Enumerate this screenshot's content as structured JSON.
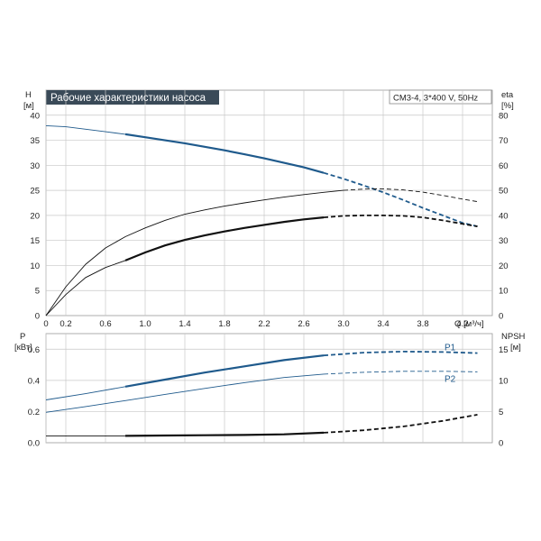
{
  "colors": {
    "title_bg": "#3a4a58",
    "blue": "#1f5a8c",
    "black": "#111111",
    "grid": "#c8c8c8"
  },
  "chart_data": [
    {
      "type": "line",
      "title": "Рабочие характеристики насоса",
      "info": "CM3-4, 3*400 V, 50Hz",
      "ylabel": "H",
      "yunit": "[м]",
      "y2label": "eta",
      "y2unit": "[%]",
      "xunit_label": "Q [м³/ч]",
      "xlim": [
        0,
        4.5
      ],
      "ylim": [
        0,
        45
      ],
      "y2lim": [
        0,
        90
      ],
      "grid": true,
      "x_ticks": [
        "0",
        "0.2",
        "0.6",
        "1.0",
        "1.4",
        "1.8",
        "2.2",
        "2.6",
        "3.0",
        "3.4",
        "3.8",
        "4.2"
      ],
      "x_tick_values": [
        0,
        0.2,
        0.6,
        1.0,
        1.4,
        1.8,
        2.2,
        2.6,
        3.0,
        3.4,
        3.8,
        4.2
      ],
      "y_ticks": [
        "0",
        "5",
        "10",
        "15",
        "20",
        "25",
        "30",
        "35",
        "40"
      ],
      "y2_ticks": [
        "0",
        "10",
        "20",
        "30",
        "40",
        "50",
        "60",
        "70",
        "80"
      ],
      "series": [
        {
          "axis": "y",
          "color": "#1f5a8c",
          "x": [
            0,
            0.2,
            0.4,
            0.6,
            0.8,
            1.0,
            1.2,
            1.4,
            1.6,
            1.8,
            2.0,
            2.2,
            2.4,
            2.6,
            2.8,
            3.0,
            3.2,
            3.4,
            3.6,
            3.8,
            4.0,
            4.2,
            4.35
          ],
          "y": [
            37.9,
            37.7,
            37.2,
            36.7,
            36.2,
            35.6,
            35.0,
            34.4,
            33.7,
            33.0,
            32.2,
            31.4,
            30.5,
            29.6,
            28.5,
            27.3,
            26.0,
            24.6,
            23.1,
            21.5,
            20.0,
            18.5,
            17.8
          ],
          "bold_range": [
            0.8,
            2.8
          ]
        },
        {
          "axis": "y2",
          "color": "#111111",
          "x": [
            0,
            0.2,
            0.4,
            0.6,
            0.8,
            1.0,
            1.2,
            1.4,
            1.6,
            1.8,
            2.0,
            2.2,
            2.4,
            2.6,
            2.8,
            3.0,
            3.2,
            3.4,
            3.6,
            3.8,
            4.0,
            4.2,
            4.35
          ],
          "y": [
            0,
            11.5,
            20.5,
            27.0,
            31.5,
            35.0,
            38.0,
            40.5,
            42.2,
            43.7,
            45.0,
            46.2,
            47.3,
            48.3,
            49.2,
            50.0,
            50.5,
            50.6,
            50.2,
            49.3,
            48.0,
            46.5,
            45.5
          ],
          "bold_range": null,
          "solid_to": 3.0
        },
        {
          "axis": "y",
          "color": "#111111",
          "x": [
            0,
            0.2,
            0.4,
            0.6,
            0.8,
            1.0,
            1.2,
            1.4,
            1.6,
            1.8,
            2.0,
            2.2,
            2.4,
            2.6,
            2.8,
            3.0,
            3.2,
            3.4,
            3.6,
            3.8,
            4.0,
            4.2,
            4.35
          ],
          "y": [
            0,
            4.2,
            7.6,
            9.6,
            11.0,
            12.6,
            14.0,
            15.1,
            16.0,
            16.8,
            17.5,
            18.1,
            18.7,
            19.2,
            19.6,
            19.9,
            20.0,
            20.0,
            19.9,
            19.6,
            19.0,
            18.3,
            17.8
          ],
          "bold_range": [
            0.8,
            2.8
          ]
        }
      ]
    },
    {
      "type": "line",
      "ylabel": "P",
      "yunit": "[кВт]",
      "y2label": "NPSH",
      "y2unit": "[м]",
      "xlim": [
        0,
        4.5
      ],
      "ylim": [
        0,
        0.7
      ],
      "y2lim": [
        0,
        17.5
      ],
      "grid": true,
      "y_ticks": [
        "0.0",
        "0.2",
        "0.4",
        "0.6"
      ],
      "y2_ticks": [
        "0",
        "5",
        "10",
        "15"
      ],
      "series": [
        {
          "name": "P1",
          "axis": "y",
          "color": "#1f5a8c",
          "x": [
            0,
            0.4,
            0.8,
            1.2,
            1.6,
            2.0,
            2.4,
            2.8,
            3.2,
            3.6,
            4.0,
            4.35
          ],
          "y": [
            0.275,
            0.315,
            0.36,
            0.405,
            0.45,
            0.49,
            0.53,
            0.56,
            0.578,
            0.585,
            0.582,
            0.575
          ],
          "bold_range": [
            0.8,
            2.8
          ]
        },
        {
          "name": "P2",
          "axis": "y",
          "color": "#1f5a8c",
          "x": [
            0,
            0.4,
            0.8,
            1.2,
            1.6,
            2.0,
            2.4,
            2.8,
            3.2,
            3.6,
            4.0,
            4.35
          ],
          "y": [
            0.195,
            0.232,
            0.27,
            0.31,
            0.348,
            0.385,
            0.418,
            0.44,
            0.452,
            0.458,
            0.458,
            0.455
          ],
          "bold_range": null,
          "solid_to": 2.8
        },
        {
          "axis": "y2",
          "color": "#111111",
          "x": [
            0,
            0.4,
            0.8,
            1.2,
            1.6,
            2.0,
            2.4,
            2.8,
            3.2,
            3.6,
            4.0,
            4.35
          ],
          "y": [
            1.1,
            1.1,
            1.1,
            1.15,
            1.2,
            1.25,
            1.35,
            1.6,
            2.0,
            2.6,
            3.5,
            4.5
          ],
          "bold_range": [
            0.8,
            2.8
          ]
        }
      ]
    }
  ]
}
